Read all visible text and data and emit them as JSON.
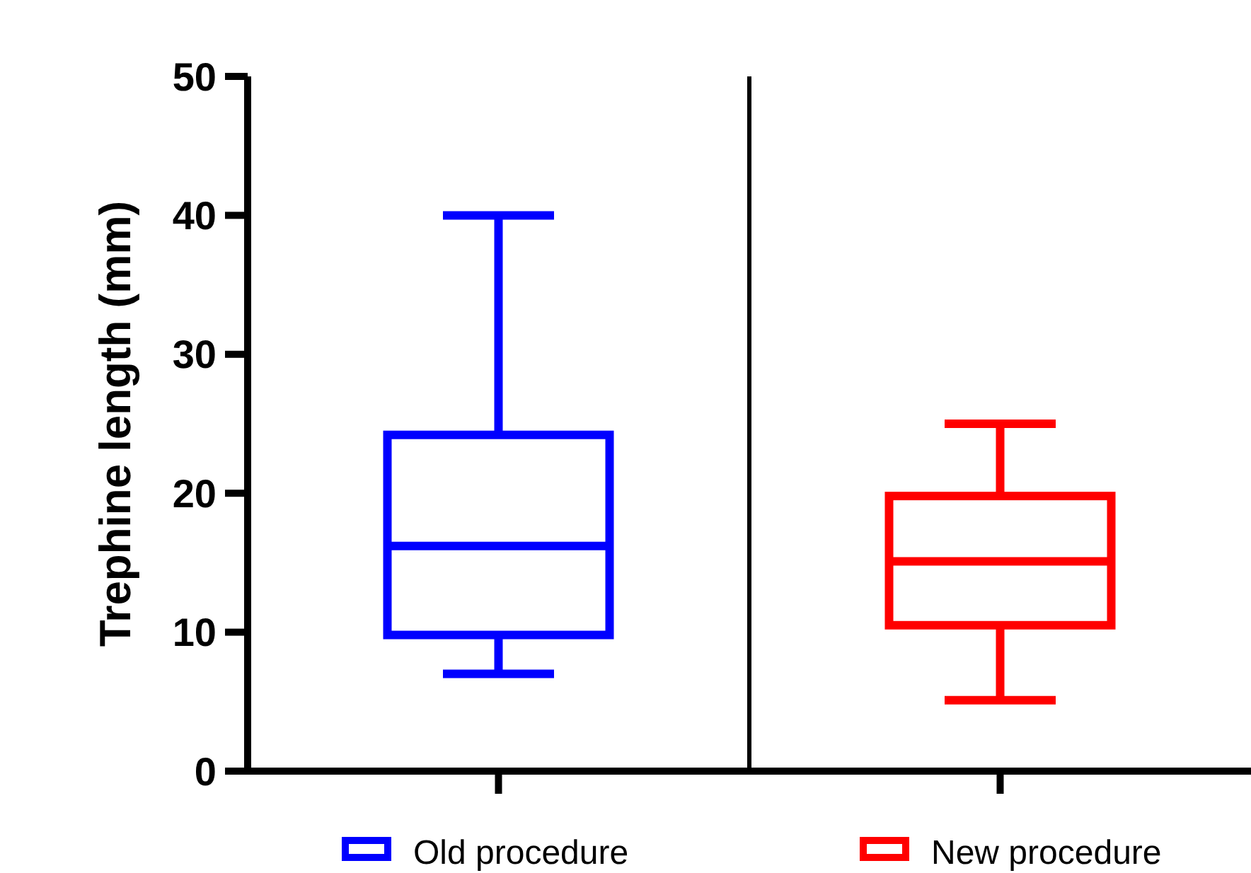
{
  "chart_data": {
    "type": "box",
    "ylabel": "Trephine length (mm)",
    "categories": [
      null,
      null
    ],
    "ylim": [
      0,
      50
    ],
    "yticks": [
      0,
      10,
      20,
      30,
      40,
      50
    ],
    "legend": "bottom",
    "grid": false,
    "series": [
      {
        "name": "Old procedure",
        "color": "#0000ff",
        "boxes": [
          {
            "low": 7,
            "q1": 9.8,
            "median": 16.2,
            "q3": 24.2,
            "high": 40
          },
          null
        ]
      },
      {
        "name": "New procedure",
        "color": "#ff0000",
        "boxes": [
          null,
          {
            "low": 5.1,
            "q1": 10.5,
            "median": 15.1,
            "q3": 19.8,
            "high": 25
          }
        ]
      }
    ]
  }
}
